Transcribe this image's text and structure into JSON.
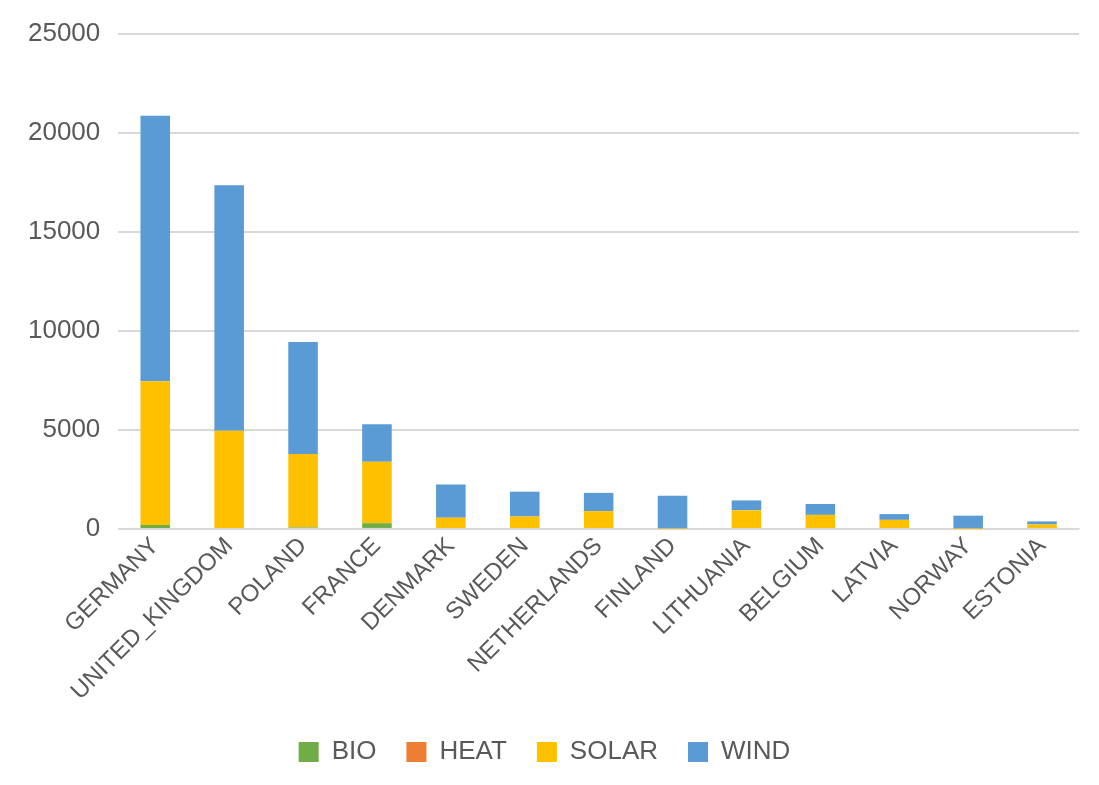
{
  "chart_data": {
    "type": "bar",
    "stacked": true,
    "categories": [
      "GERMANY",
      "UNITED_KINGDOM",
      "POLAND",
      "FRANCE",
      "DENMARK",
      "SWEDEN",
      "NETHERLANDS",
      "FINLAND",
      "LITHUANIA",
      "BELGIUM",
      "LATVIA",
      "NORWAY",
      "ESTONIA"
    ],
    "series": [
      {
        "name": "BIO",
        "color": "#70ad47",
        "values": [
          200,
          0,
          80,
          290,
          0,
          0,
          0,
          0,
          0,
          0,
          0,
          0,
          0
        ]
      },
      {
        "name": "HEAT",
        "color": "#ed7d31",
        "values": [
          0,
          0,
          0,
          0,
          0,
          0,
          0,
          0,
          0,
          0,
          0,
          0,
          0
        ]
      },
      {
        "name": "SOLAR",
        "color": "#ffc000",
        "values": [
          7250,
          4950,
          3700,
          3100,
          570,
          630,
          900,
          20,
          940,
          710,
          460,
          10,
          230
        ]
      },
      {
        "name": "WIND",
        "color": "#5b9bd5",
        "values": [
          13400,
          12400,
          5650,
          1900,
          1670,
          1250,
          920,
          1650,
          500,
          550,
          290,
          660,
          150
        ]
      }
    ],
    "ylim": [
      0,
      25000
    ],
    "yticks": [
      0,
      5000,
      10000,
      15000,
      20000,
      25000
    ],
    "grid": "y",
    "legend": "bottom"
  }
}
